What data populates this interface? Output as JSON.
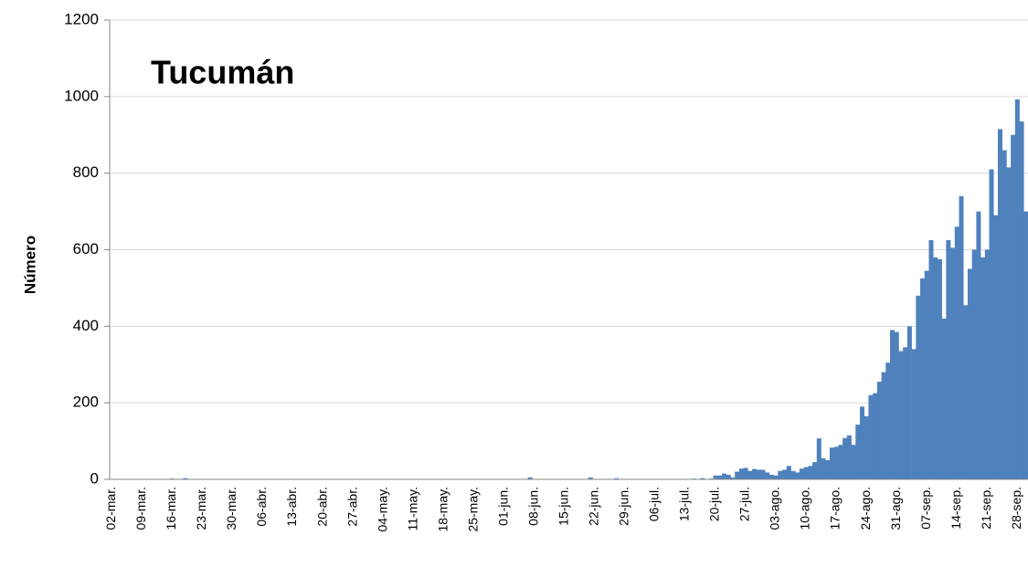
{
  "chart_data": {
    "type": "bar",
    "title": "Tucumán",
    "y_label": "Número",
    "color": "#4f81bd",
    "grid": true,
    "ylim": [
      0,
      1200
    ],
    "yticks": [
      0,
      200,
      400,
      600,
      800,
      1000,
      1200
    ],
    "categories": [
      "02-mar.",
      null,
      null,
      null,
      null,
      null,
      null,
      "09-mar.",
      null,
      null,
      null,
      null,
      null,
      null,
      "16-mar.",
      null,
      null,
      null,
      null,
      null,
      null,
      "23-mar.",
      null,
      null,
      null,
      null,
      null,
      null,
      "30-mar.",
      null,
      null,
      null,
      null,
      null,
      null,
      "06-abr.",
      null,
      null,
      null,
      null,
      null,
      null,
      "13-abr.",
      null,
      null,
      null,
      null,
      null,
      null,
      "20-abr.",
      null,
      null,
      null,
      null,
      null,
      null,
      "27-abr.",
      null,
      null,
      null,
      null,
      null,
      null,
      "04-may.",
      null,
      null,
      null,
      null,
      null,
      null,
      "11-may.",
      null,
      null,
      null,
      null,
      null,
      null,
      "18-may.",
      null,
      null,
      null,
      null,
      null,
      null,
      "25-may.",
      null,
      null,
      null,
      null,
      null,
      null,
      "01-jun.",
      null,
      null,
      null,
      null,
      null,
      null,
      "08-jun.",
      null,
      null,
      null,
      null,
      null,
      null,
      "15-jun.",
      null,
      null,
      null,
      null,
      null,
      null,
      "22-jun.",
      null,
      null,
      null,
      null,
      null,
      null,
      "29-jun.",
      null,
      null,
      null,
      null,
      null,
      null,
      "06-jul.",
      null,
      null,
      null,
      null,
      null,
      null,
      "13-jul.",
      null,
      null,
      null,
      null,
      null,
      null,
      "20-jul.",
      null,
      null,
      null,
      null,
      null,
      null,
      "27-jul.",
      null,
      null,
      null,
      null,
      null,
      null,
      "03-ago.",
      null,
      null,
      null,
      null,
      null,
      null,
      "10-ago.",
      null,
      null,
      null,
      null,
      null,
      null,
      "17-ago.",
      null,
      null,
      null,
      null,
      null,
      null,
      "24-ago.",
      null,
      null,
      null,
      null,
      null,
      null,
      "31-ago.",
      null,
      null,
      null,
      null,
      null,
      null,
      "07-sep.",
      null,
      null,
      null,
      null,
      null,
      null,
      "14-sep.",
      null,
      null,
      null,
      null,
      null,
      null,
      "21-sep.",
      null,
      null,
      null,
      null,
      null,
      null,
      "28-sep.",
      null,
      null
    ],
    "values": [
      0,
      0,
      0,
      0,
      0,
      0,
      0,
      0,
      0,
      0,
      0,
      0,
      0,
      0,
      2,
      0,
      0,
      3,
      0,
      0,
      0,
      0,
      0,
      0,
      0,
      0,
      0,
      0,
      0,
      0,
      0,
      0,
      0,
      0,
      0,
      0,
      0,
      0,
      0,
      0,
      0,
      0,
      0,
      0,
      0,
      0,
      0,
      0,
      0,
      0,
      0,
      0,
      0,
      0,
      0,
      0,
      0,
      0,
      0,
      0,
      0,
      0,
      0,
      0,
      0,
      0,
      0,
      0,
      0,
      0,
      0,
      0,
      0,
      0,
      0,
      0,
      0,
      0,
      0,
      0,
      0,
      0,
      0,
      0,
      0,
      0,
      0,
      0,
      0,
      0,
      0,
      0,
      0,
      0,
      0,
      0,
      0,
      5,
      0,
      0,
      0,
      0,
      0,
      0,
      0,
      0,
      0,
      0,
      0,
      0,
      0,
      5,
      0,
      0,
      0,
      0,
      0,
      3,
      0,
      0,
      0,
      0,
      0,
      0,
      0,
      0,
      0,
      0,
      0,
      0,
      0,
      0,
      1,
      0,
      0,
      2,
      0,
      3,
      0,
      2,
      10,
      10,
      15,
      12,
      5,
      20,
      28,
      30,
      22,
      27,
      25,
      25,
      18,
      12,
      10,
      22,
      25,
      35,
      22,
      18,
      28,
      32,
      35,
      45,
      107,
      55,
      50,
      83,
      85,
      90,
      108,
      115,
      90,
      143,
      190,
      165,
      220,
      225,
      255,
      280,
      305,
      390,
      385,
      335,
      345,
      400,
      340,
      480,
      525,
      545,
      625,
      580,
      575,
      420,
      625,
      605,
      660,
      740,
      455,
      550,
      600,
      700,
      580,
      600,
      810,
      690,
      915,
      860,
      815,
      900,
      993,
      935,
      700
    ]
  }
}
